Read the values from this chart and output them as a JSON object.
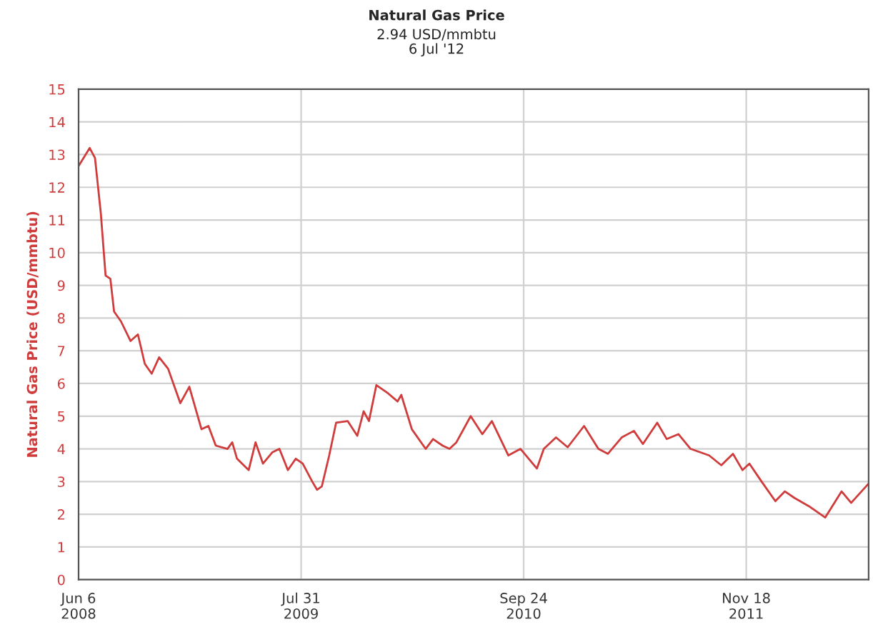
{
  "chart_data": {
    "type": "line",
    "title": "Natural Gas Price",
    "subtitle": "2.94 USD/mmbtu\n6 Jul '12",
    "ylabel": "Natural Gas Price (USD/mmbtu)",
    "x": [
      "2008-06-06",
      "2008-06-27",
      "2008-07-07",
      "2008-07-18",
      "2008-07-27",
      "2008-08-05",
      "2008-08-12",
      "2008-08-25",
      "2008-09-12",
      "2008-09-26",
      "2008-10-09",
      "2008-10-22",
      "2008-11-05",
      "2008-11-22",
      "2008-12-15",
      "2009-01-01",
      "2009-01-24",
      "2009-02-06",
      "2009-02-20",
      "2009-03-14",
      "2009-03-23",
      "2009-04-01",
      "2009-04-23",
      "2009-05-06",
      "2009-05-20",
      "2009-06-07",
      "2009-06-20",
      "2009-07-06",
      "2009-07-21",
      "2009-08-03",
      "2009-08-21",
      "2009-08-30",
      "2009-09-08",
      "2009-09-22",
      "2009-10-05",
      "2009-10-27",
      "2009-11-14",
      "2009-11-26",
      "2009-12-06",
      "2009-12-20",
      "2010-01-11",
      "2010-01-29",
      "2010-02-05",
      "2010-02-25",
      "2010-03-23",
      "2010-04-06",
      "2010-04-24",
      "2010-05-07",
      "2010-05-20",
      "2010-06-16",
      "2010-07-08",
      "2010-07-26",
      "2010-08-26",
      "2010-09-18",
      "2010-10-19",
      "2010-11-01",
      "2010-11-24",
      "2010-12-16",
      "2011-01-16",
      "2011-02-12",
      "2011-03-02",
      "2011-03-28",
      "2011-04-20",
      "2011-05-07",
      "2011-06-03",
      "2011-06-21",
      "2011-07-13",
      "2011-08-05",
      "2011-09-09",
      "2011-10-02",
      "2011-10-24",
      "2011-11-11",
      "2011-11-24",
      "2011-12-17",
      "2012-01-12",
      "2012-01-30",
      "2012-02-17",
      "2012-03-15",
      "2012-04-15",
      "2012-05-16",
      "2012-06-03",
      "2012-07-06"
    ],
    "series": [
      {
        "color": "#d03c3c",
        "values": [
          12.65,
          13.2,
          12.9,
          11.2,
          9.3,
          9.2,
          8.2,
          7.9,
          7.3,
          7.5,
          6.6,
          6.3,
          6.8,
          6.45,
          5.4,
          5.9,
          4.6,
          4.7,
          4.1,
          4.0,
          4.2,
          3.7,
          3.35,
          4.2,
          3.55,
          3.9,
          4.0,
          3.35,
          3.7,
          3.55,
          3.0,
          2.75,
          2.85,
          3.8,
          4.8,
          4.85,
          4.4,
          5.15,
          4.85,
          5.95,
          5.7,
          5.45,
          5.65,
          4.6,
          4.0,
          4.3,
          4.1,
          4.0,
          4.2,
          5.0,
          4.45,
          4.85,
          3.8,
          4.0,
          3.4,
          4.0,
          4.35,
          4.05,
          4.7,
          4.0,
          3.85,
          4.35,
          4.55,
          4.15,
          4.8,
          4.3,
          4.45,
          4.0,
          3.8,
          3.5,
          3.85,
          3.35,
          3.55,
          3.0,
          2.4,
          2.7,
          2.5,
          2.25,
          1.9,
          2.7,
          2.35,
          2.94
        ]
      }
    ],
    "xlim": [
      "2008-06-06",
      "2012-07-06"
    ],
    "xticks": [
      {
        "value": "2008-06-06",
        "label": "Jun 6\n2008"
      },
      {
        "value": "2009-07-31",
        "label": "Jul 31\n2009"
      },
      {
        "value": "2010-09-24",
        "label": "Sep 24\n2010"
      },
      {
        "value": "2011-11-18",
        "label": "Nov 18\n2011"
      }
    ],
    "ylim": [
      0,
      15
    ],
    "yticks": [
      0,
      1,
      2,
      3,
      4,
      5,
      6,
      7,
      8,
      9,
      10,
      11,
      12,
      13,
      14,
      15
    ],
    "grid": true,
    "marker": "none",
    "line_style": "solid"
  }
}
